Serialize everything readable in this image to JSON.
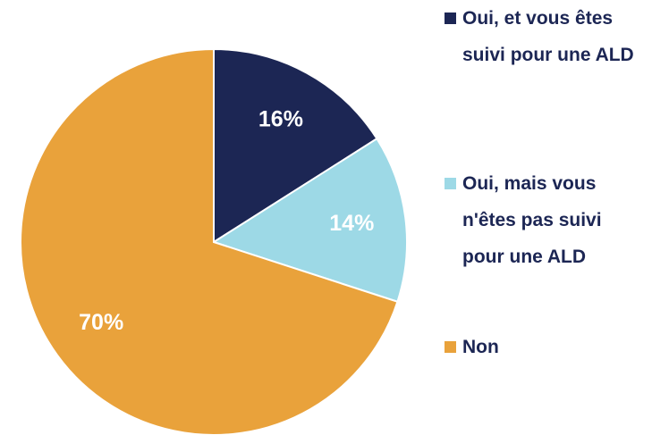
{
  "chart_data": {
    "type": "pie",
    "categories": [
      "Oui, et vous êtes suivi pour une ALD",
      "Oui, mais vous n'êtes pas suivi pour une ALD",
      "Non"
    ],
    "values": [
      16,
      14,
      70
    ],
    "value_labels": [
      "16%",
      "14%",
      "70%"
    ],
    "colors": [
      "#1c2654",
      "#9dd9e6",
      "#e9a23b"
    ],
    "legend": "right"
  }
}
